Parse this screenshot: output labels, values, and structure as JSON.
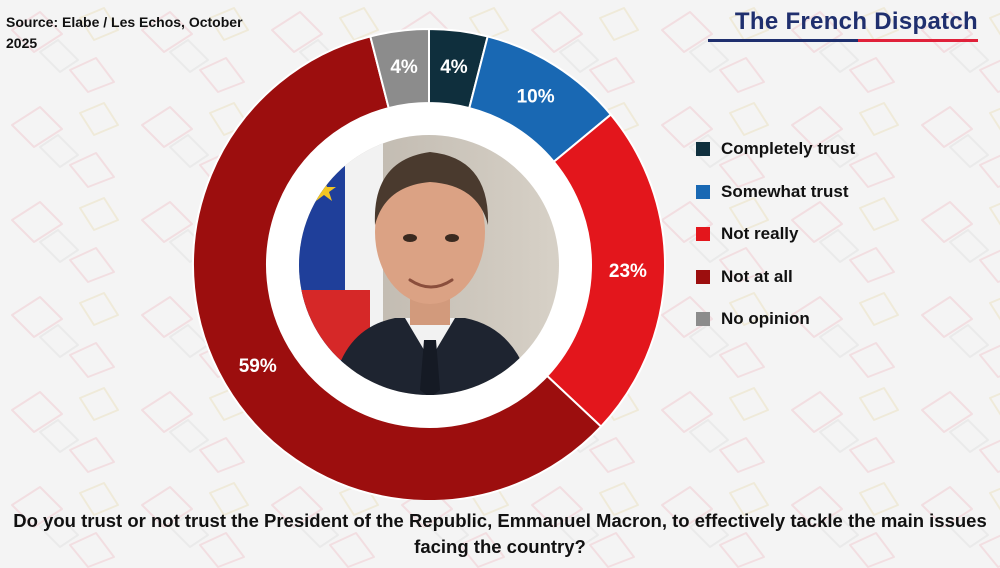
{
  "source": "Source: Elabe / Les Echos, October 2025",
  "brand": "The French Dispatch",
  "question": "Do you trust or not trust the President of the Republic, Emmanuel Macron, to effectively tackle the main issues facing the country?",
  "colors": {
    "completely_trust": "#0f2f3d",
    "somewhat_trust": "#1968b3",
    "not_really": "#e3161c",
    "not_at_all": "#9c0e0e",
    "no_opinion": "#8c8c8c",
    "brand_blue": "#1f2f6e",
    "brand_red": "#e0213a"
  },
  "chart_data": {
    "type": "pie",
    "title": "Do you trust or not trust the President of the Republic, Emmanuel Macron, to effectively tackle the main issues facing the country?",
    "categories": [
      "Completely trust",
      "Somewhat trust",
      "Not really",
      "Not at all",
      "No opinion"
    ],
    "values": [
      4,
      10,
      23,
      59,
      4
    ],
    "value_labels": [
      "4%",
      "10%",
      "23%",
      "59%",
      "4%"
    ],
    "unit": "%",
    "legend_position": "right",
    "donut": true
  }
}
